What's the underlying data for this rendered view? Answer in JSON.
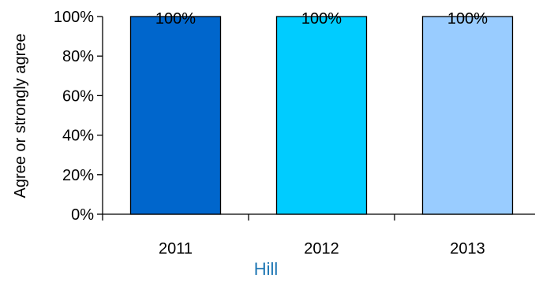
{
  "chart_data": {
    "type": "bar",
    "title": "",
    "xlabel": "Hill",
    "ylabel": "Agree or strongly agree",
    "categories": [
      "2011",
      "2012",
      "2013"
    ],
    "values": [
      100,
      100,
      100
    ],
    "data_labels": [
      "100%",
      "100%",
      "100%"
    ],
    "bar_colors": [
      "#0066CC",
      "#00CCFF",
      "#99CCFF"
    ],
    "ylim": [
      0,
      100
    ],
    "yticks": [
      0,
      20,
      40,
      60,
      80,
      100
    ],
    "ytick_labels": [
      "0%",
      "20%",
      "40%",
      "60%",
      "80%",
      "100%"
    ],
    "grid": false,
    "legend": "none",
    "xlabel_color": "#1F77B4"
  }
}
